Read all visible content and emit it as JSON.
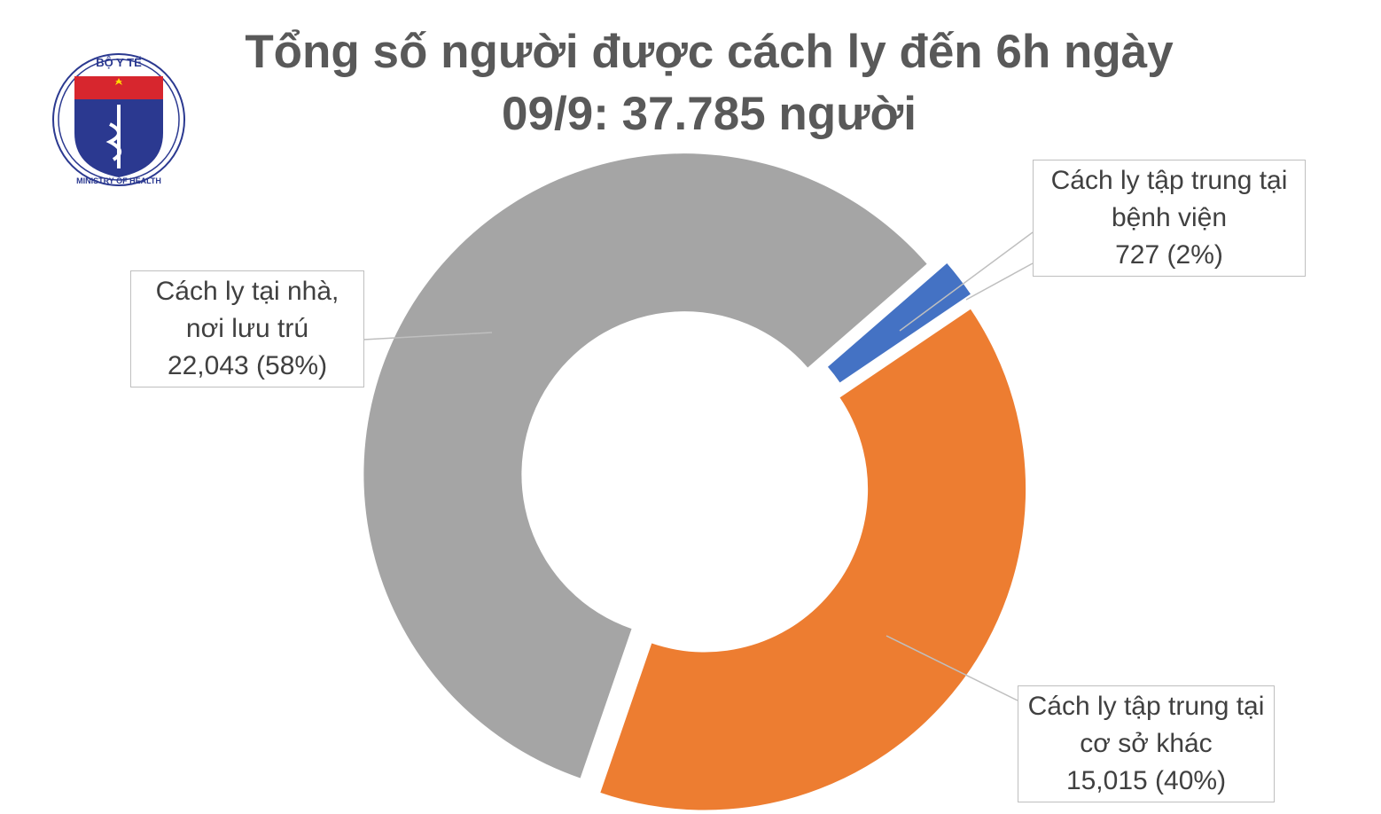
{
  "logo": {
    "top": "BỘ Y TẾ",
    "bottom": "MINISTRY OF HEALTH"
  },
  "chart_data": {
    "type": "donut",
    "title": "Tổng số người được cách ly đến 6h ngày 09/9: 37.785 người",
    "categories": [
      "Cách ly tập trung tại bệnh viện",
      "Cách ly tập trung tại cơ sở khác",
      "Cách ly tại nhà, nơi lưu trú"
    ],
    "values": [
      727,
      15015,
      22043
    ],
    "value_labels": [
      "727 (2%)",
      "15,015 (40%)",
      "22,043 (58%)"
    ],
    "colors": [
      "#4472c4",
      "#ed7d31",
      "#a5a5a5"
    ]
  }
}
